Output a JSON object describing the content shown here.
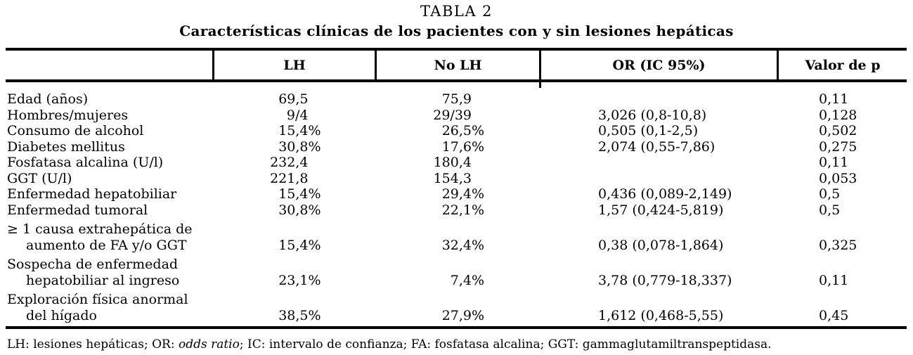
{
  "page": {
    "background": "#ffffff",
    "text_color": "#000000"
  },
  "title": "TABLA 2",
  "subtitle": "Características clínicas de los pacientes con y sin lesiones hepáticas",
  "table": {
    "header": {
      "col0": "",
      "col1": "LH",
      "col2": "No LH",
      "col3": "OR (IC 95%)",
      "col4": "Valor de p"
    },
    "rows": [
      {
        "label1": "Edad (años)",
        "label2": "",
        "lh": {
          "n": "69,5",
          "s": ""
        },
        "nolh": {
          "n": "75,9",
          "s": ""
        },
        "or": "",
        "p": "0,11"
      },
      {
        "label1": "Hombres/mujeres",
        "label2": "",
        "lh": {
          "n": "9/4",
          "s": ""
        },
        "nolh": {
          "n": "29/39",
          "s": ""
        },
        "or": "3,026 (0,8-10,8)",
        "p": "0,128"
      },
      {
        "label1": "Consumo de alcohol",
        "label2": "",
        "lh": {
          "n": "15,4",
          "s": "%"
        },
        "nolh": {
          "n": "26,5",
          "s": "%"
        },
        "or": "0,505 (0,1-2,5)",
        "p": "0,502"
      },
      {
        "label1": "Diabetes mellitus",
        "label2": "",
        "lh": {
          "n": "30,8",
          "s": "%"
        },
        "nolh": {
          "n": "17,6",
          "s": "%"
        },
        "or": "2,074 (0,55-7,86)",
        "p": "0,275"
      },
      {
        "label1": "Fosfatasa alcalina (U/l)",
        "label2": "",
        "lh": {
          "n": "232,4",
          "s": ""
        },
        "nolh": {
          "n": "180,4",
          "s": ""
        },
        "or": "",
        "p": "0,11"
      },
      {
        "label1": "GGT (U/l)",
        "label2": "",
        "lh": {
          "n": "221,8",
          "s": ""
        },
        "nolh": {
          "n": "154,3",
          "s": ""
        },
        "or": "",
        "p": "0,053"
      },
      {
        "label1": "Enfermedad hepatobiliar",
        "label2": "",
        "lh": {
          "n": "15,4",
          "s": "%"
        },
        "nolh": {
          "n": "29,4",
          "s": "%"
        },
        "or": "0,436 (0,089-2,149)",
        "p": "0,5"
      },
      {
        "label1": "Enfermedad tumoral",
        "label2": "",
        "lh": {
          "n": "30,8",
          "s": "%"
        },
        "nolh": {
          "n": "22,1",
          "s": "%"
        },
        "or": "1,57 (0,424-5,819)",
        "p": "0,5"
      },
      {
        "label1": "≥ 1 causa extrahepática de",
        "label2": "aumento de FA y/o GGT",
        "lh": {
          "n": "15,4",
          "s": "%"
        },
        "nolh": {
          "n": "32,4",
          "s": "%"
        },
        "or": "0,38 (0,078-1,864)",
        "p": "0,325"
      },
      {
        "label1": "Sospecha de enfermedad",
        "label2": "hepatobiliar al ingreso",
        "lh": {
          "n": "23,1",
          "s": "%"
        },
        "nolh": {
          "n": "7,4",
          "s": "%"
        },
        "or": "3,78 (0,779-18,337)",
        "p": "0,11"
      },
      {
        "label1": "Exploración física anormal",
        "label2": "del hígado",
        "lh": {
          "n": "38,5",
          "s": "%"
        },
        "nolh": {
          "n": "27,9",
          "s": "%"
        },
        "or": "1,612 (0,468-5,55)",
        "p": "0,45"
      }
    ]
  },
  "footnote": {
    "part1": "LH: lesiones hepáticas; OR: ",
    "italic": "odds ratio",
    "part2": "; IC: intervalo de confianza; FA: fosfatasa alcalina; GGT: gammaglutamiltranspeptidasa."
  }
}
